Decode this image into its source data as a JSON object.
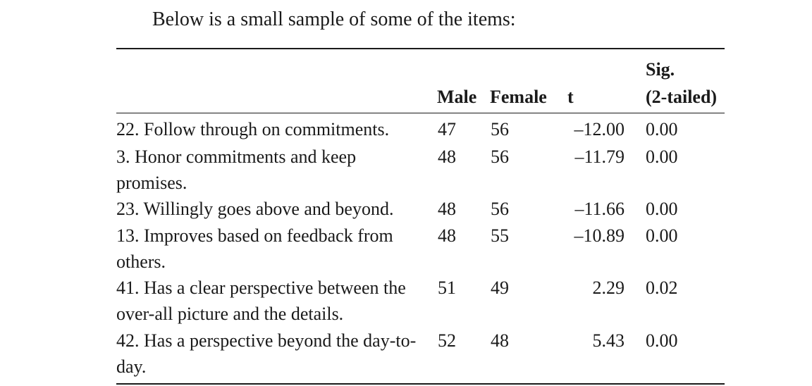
{
  "intro_text": "Below is a small sample of some of the items:",
  "table": {
    "headers": {
      "male": "Male",
      "female": "Female",
      "t": "t",
      "sig_line1": "Sig.",
      "sig_line2": "(2-tailed)"
    },
    "rows": [
      {
        "item": "22. Follow through on commitments.",
        "male": "47",
        "female": "56",
        "t": "–12.00",
        "sig": "0.00"
      },
      {
        "item": "3. Honor commitments and keep promises.",
        "male": "48",
        "female": "56",
        "t": "–11.79",
        "sig": "0.00"
      },
      {
        "item": "23. Willingly goes above and beyond.",
        "male": "48",
        "female": "56",
        "t": "–11.66",
        "sig": "0.00"
      },
      {
        "item": "13. Improves based on feedback from others.",
        "male": "48",
        "female": "55",
        "t": "–10.89",
        "sig": "0.00"
      },
      {
        "item": "41. Has a clear perspective between the over-all picture and the details.",
        "male": "51",
        "female": "49",
        "t": "2.29",
        "sig": "0.02"
      },
      {
        "item": "42. Has a perspective beyond the day-to-day.",
        "male": "52",
        "female": "48",
        "t": "5.43",
        "sig": "0.00"
      }
    ]
  }
}
